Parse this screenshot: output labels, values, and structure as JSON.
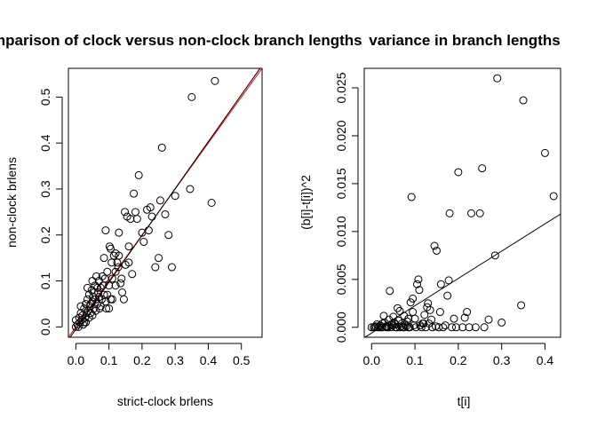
{
  "chart_data": [
    {
      "type": "scatter",
      "title": "Comparison of clock versus non-clock branch lengths",
      "xlabel": "strict-clock brlens",
      "ylabel": "non-clock brlens",
      "xlim": [
        -0.0225,
        0.5625
      ],
      "ylim": [
        -0.0225,
        0.5625
      ],
      "xticks": [
        "0.0",
        "0.1",
        "0.2",
        "0.3",
        "0.4",
        "0.5"
      ],
      "xtick_values": [
        0,
        0.1,
        0.2,
        0.3,
        0.4,
        0.5
      ],
      "yticks": [
        "0.0",
        "0.1",
        "0.2",
        "0.3",
        "0.4",
        "0.5"
      ],
      "ytick_values": [
        0,
        0.1,
        0.2,
        0.3,
        0.4,
        0.5
      ],
      "lines": [
        {
          "name": "identity",
          "color": "#ff0000",
          "intercept": 0,
          "slope": 1
        },
        {
          "name": "fit",
          "color": "#000000",
          "intercept": -0.005,
          "slope": 1.02
        }
      ],
      "points": [
        [
          0.0,
          0.0
        ],
        [
          0.005,
          0.005
        ],
        [
          0.01,
          0.02
        ],
        [
          0.012,
          0.01
        ],
        [
          0.015,
          0.03
        ],
        [
          0.018,
          0.015
        ],
        [
          0.02,
          0.025
        ],
        [
          0.022,
          0.005
        ],
        [
          0.025,
          0.04
        ],
        [
          0.028,
          0.02
        ],
        [
          0.03,
          0.05
        ],
        [
          0.03,
          0.01
        ],
        [
          0.032,
          0.03
        ],
        [
          0.035,
          0.06
        ],
        [
          0.037,
          0.035
        ],
        [
          0.04,
          0.02
        ],
        [
          0.04,
          0.07
        ],
        [
          0.042,
          0.045
        ],
        [
          0.045,
          0.03
        ],
        [
          0.048,
          0.08
        ],
        [
          0.05,
          0.055
        ],
        [
          0.05,
          0.025
        ],
        [
          0.052,
          0.065
        ],
        [
          0.055,
          0.04
        ],
        [
          0.058,
          0.09
        ],
        [
          0.06,
          0.06
        ],
        [
          0.062,
          0.11
        ],
        [
          0.065,
          0.05
        ],
        [
          0.068,
          0.075
        ],
        [
          0.07,
          0.1
        ],
        [
          0.072,
          0.04
        ],
        [
          0.075,
          0.085
        ],
        [
          0.078,
          0.06
        ],
        [
          0.08,
          0.11
        ],
        [
          0.082,
          0.09
        ],
        [
          0.085,
          0.07
        ],
        [
          0.088,
          0.105
        ],
        [
          0.09,
          0.055
        ],
        [
          0.09,
          0.21
        ],
        [
          0.092,
          0.04
        ],
        [
          0.095,
          0.12
        ],
        [
          0.1,
          0.04
        ],
        [
          0.1,
          0.09
        ],
        [
          0.102,
          0.175
        ],
        [
          0.105,
          0.17
        ],
        [
          0.108,
          0.14
        ],
        [
          0.11,
          0.06
        ],
        [
          0.11,
          0.105
        ],
        [
          0.115,
          0.155
        ],
        [
          0.12,
          0.16
        ],
        [
          0.12,
          0.09
        ],
        [
          0.125,
          0.14
        ],
        [
          0.128,
          0.13
        ],
        [
          0.13,
          0.205
        ],
        [
          0.135,
          0.095
        ],
        [
          0.138,
          0.105
        ],
        [
          0.14,
          0.075
        ],
        [
          0.145,
          0.06
        ],
        [
          0.148,
          0.25
        ],
        [
          0.15,
          0.135
        ],
        [
          0.155,
          0.24
        ],
        [
          0.16,
          0.175
        ],
        [
          0.165,
          0.235
        ],
        [
          0.17,
          0.115
        ],
        [
          0.175,
          0.29
        ],
        [
          0.18,
          0.25
        ],
        [
          0.185,
          0.235
        ],
        [
          0.19,
          0.33
        ],
        [
          0.2,
          0.205
        ],
        [
          0.205,
          0.185
        ],
        [
          0.215,
          0.255
        ],
        [
          0.22,
          0.21
        ],
        [
          0.225,
          0.26
        ],
        [
          0.23,
          0.24
        ],
        [
          0.24,
          0.13
        ],
        [
          0.25,
          0.15
        ],
        [
          0.255,
          0.275
        ],
        [
          0.26,
          0.39
        ],
        [
          0.27,
          0.245
        ],
        [
          0.28,
          0.2
        ],
        [
          0.29,
          0.13
        ],
        [
          0.3,
          0.285
        ],
        [
          0.345,
          0.3
        ],
        [
          0.35,
          0.5
        ],
        [
          0.41,
          0.27
        ],
        [
          0.42,
          0.535
        ],
        [
          0.0,
          0.015
        ],
        [
          0.008,
          0.0
        ],
        [
          0.015,
          0.045
        ],
        [
          0.025,
          0.01
        ],
        [
          0.035,
          0.085
        ],
        [
          0.045,
          0.05
        ],
        [
          0.055,
          0.075
        ],
        [
          0.065,
          0.085
        ],
        [
          0.075,
          0.045
        ],
        [
          0.085,
          0.15
        ],
        [
          0.095,
          0.07
        ],
        [
          0.105,
          0.06
        ],
        [
          0.13,
          0.155
        ],
        [
          0.16,
          0.14
        ],
        [
          0.12,
          0.12
        ],
        [
          0.05,
          0.1
        ],
        [
          0.06,
          0.035
        ],
        [
          0.07,
          0.065
        ]
      ]
    },
    {
      "type": "scatter",
      "title": "variance in branch lengths",
      "xlabel": "t[i]",
      "ylabel": "(b[i]-t[i])^2",
      "xlim": [
        -0.017,
        0.436
      ],
      "ylim": [
        -0.00104,
        0.02704
      ],
      "xticks": [
        "0.0",
        "0.1",
        "0.2",
        "0.3",
        "0.4"
      ],
      "xtick_values": [
        0,
        0.1,
        0.2,
        0.3,
        0.4
      ],
      "yticks": [
        "0.000",
        "0.005",
        "0.010",
        "0.015",
        "0.020",
        "0.025"
      ],
      "ytick_values": [
        0,
        0.005,
        0.01,
        0.015,
        0.02,
        0.025
      ],
      "lines": [
        {
          "name": "fit",
          "color": "#000000",
          "intercept": -0.0006,
          "slope": 0.0285
        }
      ],
      "points": [
        [
          0.0,
          0.0
        ],
        [
          0.005,
          0.0
        ],
        [
          0.01,
          0.0001
        ],
        [
          0.015,
          0.0
        ],
        [
          0.02,
          0.0002
        ],
        [
          0.025,
          0.0
        ],
        [
          0.03,
          0.0005
        ],
        [
          0.035,
          0.0001
        ],
        [
          0.04,
          0.0008
        ],
        [
          0.042,
          0.0038
        ],
        [
          0.045,
          0.0
        ],
        [
          0.05,
          0.0011
        ],
        [
          0.055,
          0.0003
        ],
        [
          0.06,
          0.002
        ],
        [
          0.065,
          0.0
        ],
        [
          0.07,
          0.0004
        ],
        [
          0.075,
          0.0012
        ],
        [
          0.08,
          0.0001
        ],
        [
          0.085,
          0.0
        ],
        [
          0.09,
          0.0026
        ],
        [
          0.092,
          0.0136
        ],
        [
          0.095,
          0.003
        ],
        [
          0.1,
          0.0009
        ],
        [
          0.105,
          0.0045
        ],
        [
          0.108,
          0.005
        ],
        [
          0.11,
          0.0039
        ],
        [
          0.115,
          0.0
        ],
        [
          0.12,
          0.0004
        ],
        [
          0.125,
          0.0
        ],
        [
          0.13,
          0.0025
        ],
        [
          0.135,
          0.0018
        ],
        [
          0.14,
          0.0
        ],
        [
          0.145,
          0.0085
        ],
        [
          0.15,
          0.008
        ],
        [
          0.155,
          0.0
        ],
        [
          0.16,
          0.0045
        ],
        [
          0.17,
          0.0002
        ],
        [
          0.175,
          0.0033
        ],
        [
          0.18,
          0.0119
        ],
        [
          0.185,
          0.0
        ],
        [
          0.2,
          0.0162
        ],
        [
          0.21,
          0.0
        ],
        [
          0.215,
          0.001
        ],
        [
          0.22,
          0.0016
        ],
        [
          0.23,
          0.0119
        ],
        [
          0.24,
          0.0
        ],
        [
          0.25,
          0.0119
        ],
        [
          0.255,
          0.0166
        ],
        [
          0.26,
          0.0
        ],
        [
          0.27,
          0.0008
        ],
        [
          0.285,
          0.0075
        ],
        [
          0.29,
          0.026
        ],
        [
          0.3,
          0.0005
        ],
        [
          0.345,
          0.0023
        ],
        [
          0.35,
          0.0237
        ],
        [
          0.4,
          0.0182
        ],
        [
          0.42,
          0.0137
        ],
        [
          0.012,
          0.0003
        ],
        [
          0.022,
          0.0
        ],
        [
          0.028,
          0.0012
        ],
        [
          0.033,
          0.0001
        ],
        [
          0.038,
          0.0
        ],
        [
          0.048,
          0.0002
        ],
        [
          0.052,
          0.0005
        ],
        [
          0.058,
          0.0
        ],
        [
          0.062,
          0.0007
        ],
        [
          0.068,
          0.0001
        ],
        [
          0.072,
          0.0
        ],
        [
          0.078,
          0.0003
        ],
        [
          0.082,
          0.0006
        ],
        [
          0.088,
          0.0
        ],
        [
          0.098,
          0.0002
        ],
        [
          0.102,
          0.0
        ],
        [
          0.112,
          0.0002
        ],
        [
          0.118,
          0.0004
        ],
        [
          0.122,
          0.0013
        ],
        [
          0.128,
          0.0021
        ],
        [
          0.138,
          0.0008
        ],
        [
          0.148,
          0.0001
        ],
        [
          0.165,
          0.0
        ],
        [
          0.178,
          0.0049
        ],
        [
          0.19,
          0.0009
        ],
        [
          0.225,
          0.0
        ],
        [
          0.195,
          0.0
        ],
        [
          0.158,
          0.0016
        ],
        [
          0.132,
          0.0004
        ],
        [
          0.095,
          0.0016
        ],
        [
          0.085,
          0.0009
        ],
        [
          0.075,
          0.0
        ],
        [
          0.065,
          0.0017
        ],
        [
          0.055,
          0.0
        ],
        [
          0.045,
          0.0003
        ],
        [
          0.035,
          0.0
        ],
        [
          0.025,
          0.0004
        ],
        [
          0.018,
          0.0
        ],
        [
          0.008,
          0.0
        ]
      ]
    }
  ]
}
